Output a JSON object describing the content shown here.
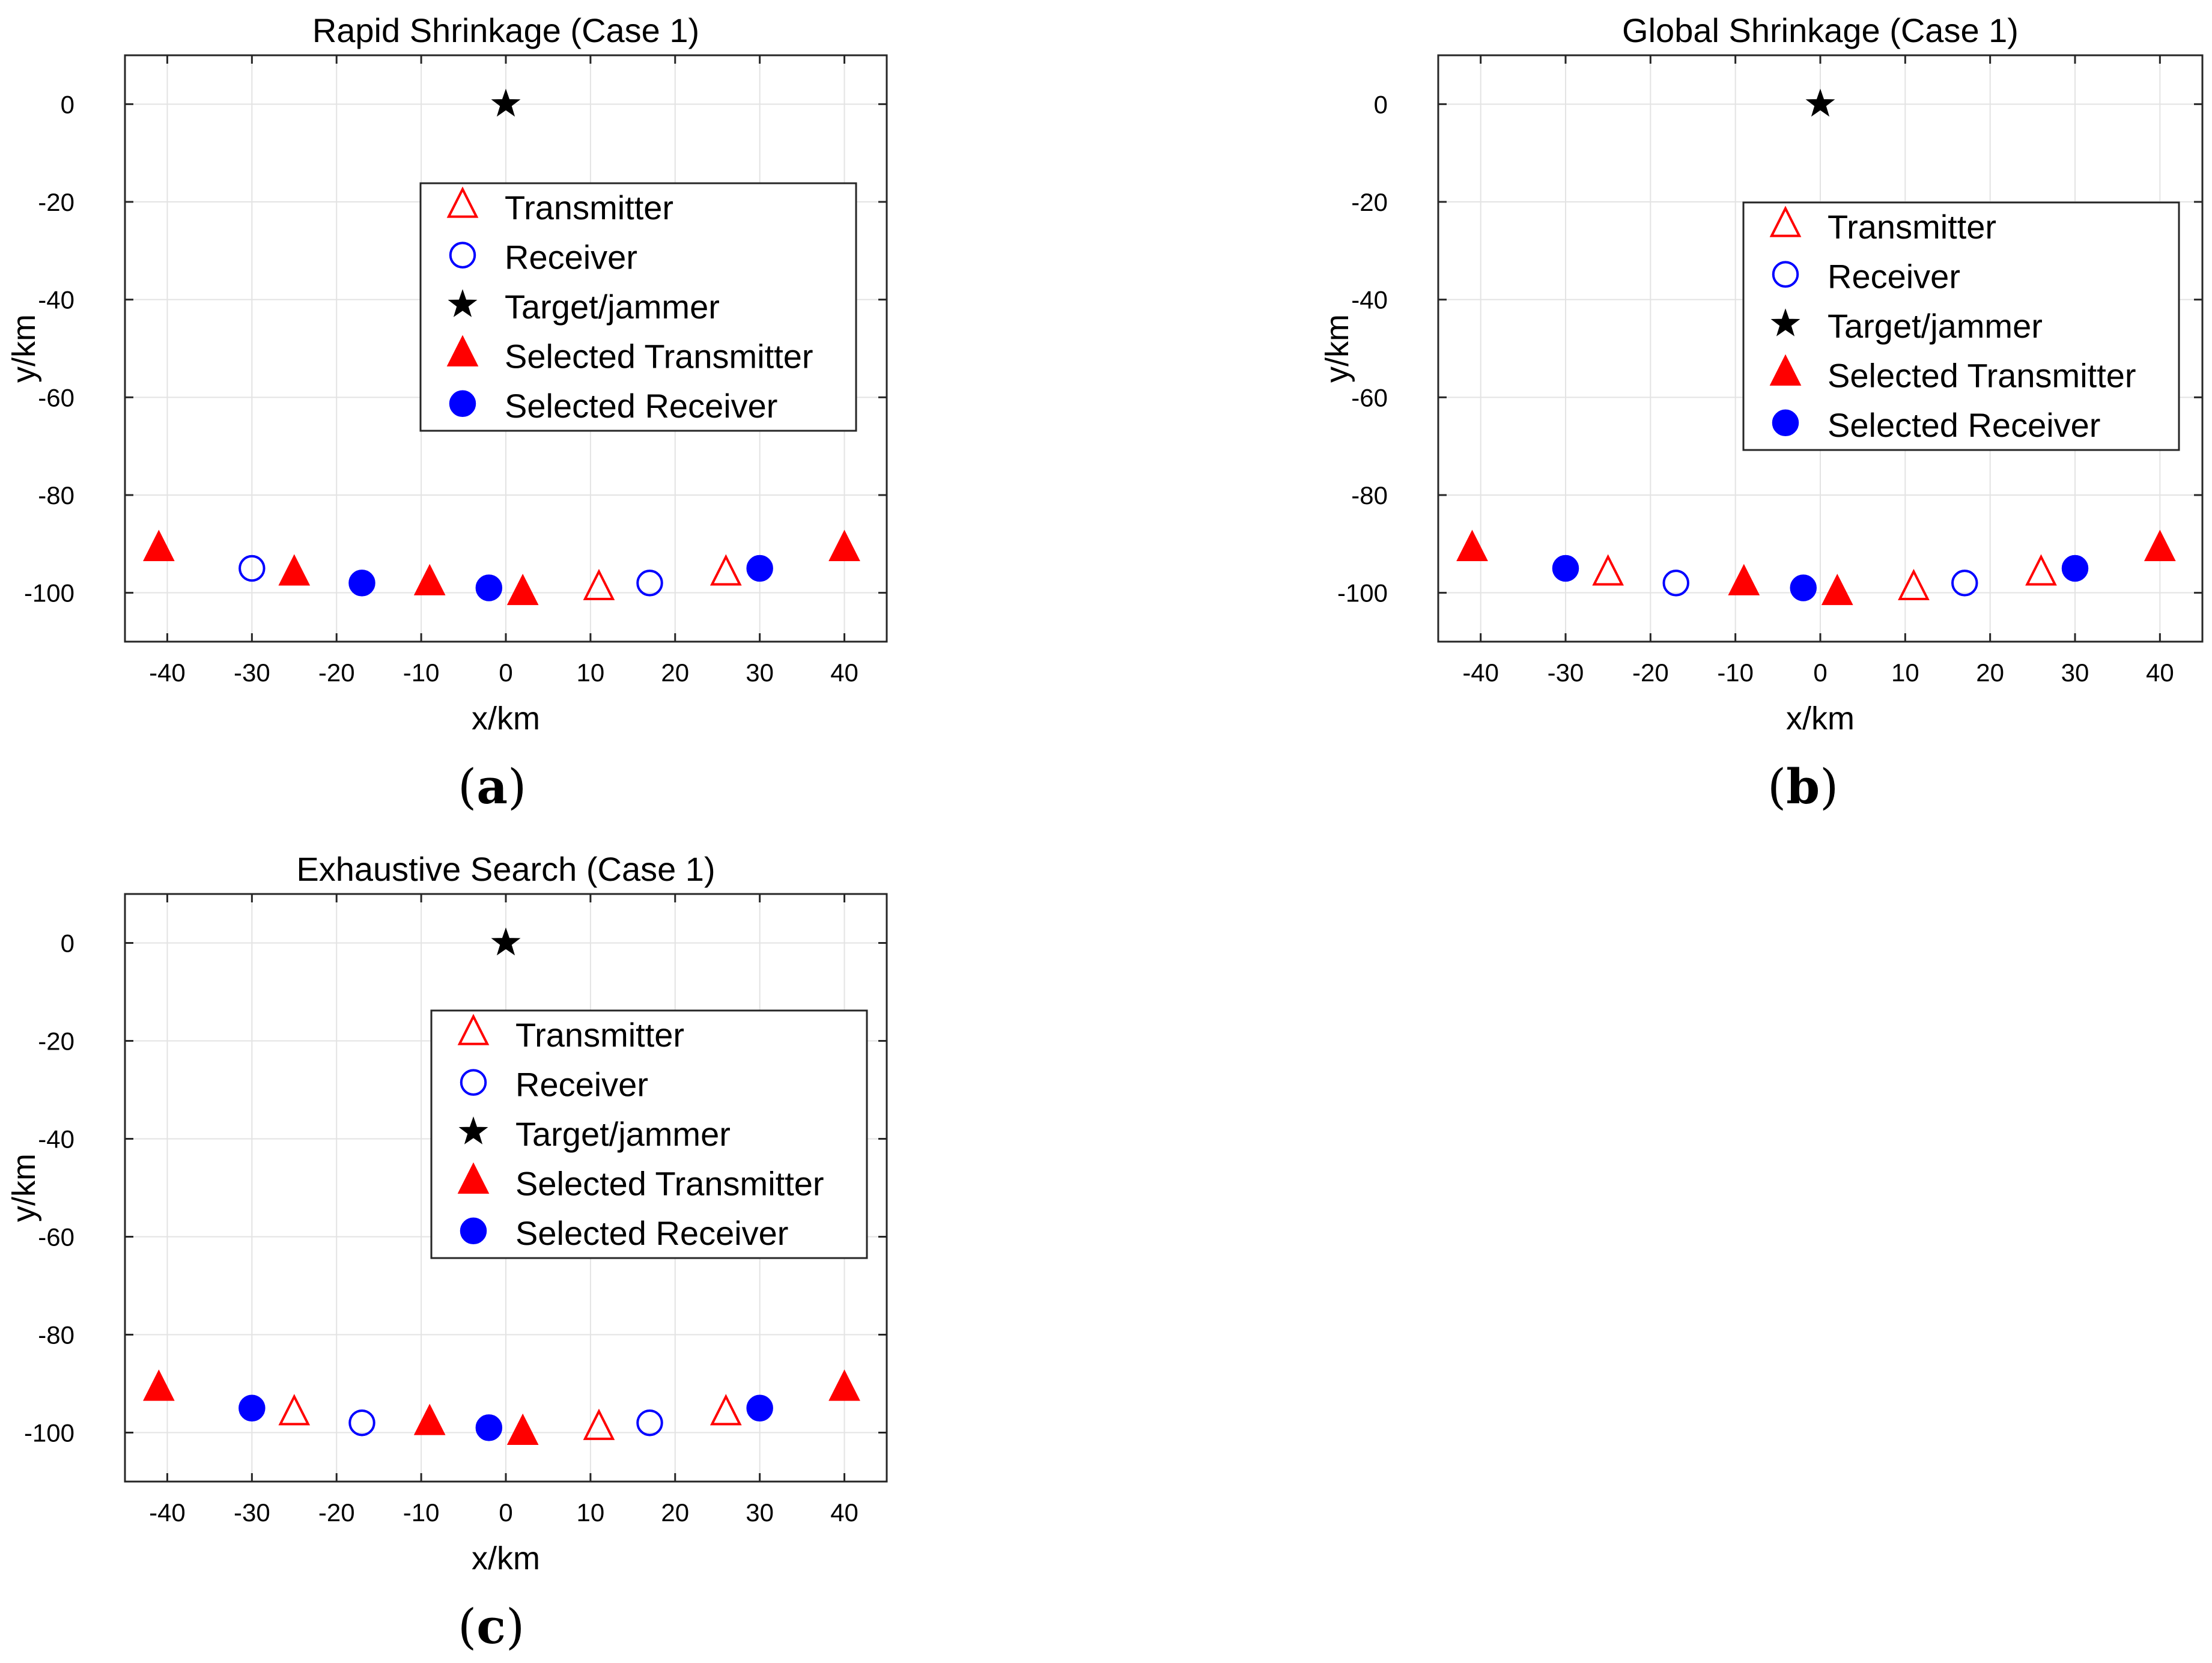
{
  "figure": {
    "labels": {
      "a": "a",
      "b": "b",
      "c": "c"
    }
  },
  "colors": {
    "transmitter": "#ff0000",
    "receiver": "#0000ff",
    "target": "#000000",
    "grid": "#e3e3e3",
    "axis": "#262626"
  },
  "legend_entries": [
    {
      "key": "transmitter",
      "label": "Transmitter",
      "marker": "triangle-open"
    },
    {
      "key": "receiver",
      "label": "Receiver",
      "marker": "circle-open"
    },
    {
      "key": "target",
      "label": "Target/jammer",
      "marker": "star"
    },
    {
      "key": "sel_transmitter",
      "label": "Selected Transmitter",
      "marker": "triangle-filled"
    },
    {
      "key": "sel_receiver",
      "label": "Selected Receiver",
      "marker": "circle-filled"
    }
  ],
  "chart_data": [
    {
      "type": "scatter",
      "panel": "a",
      "title": "Rapid Shrinkage (Case 1)",
      "xlabel": "x/km",
      "ylabel": "y/km",
      "xlim": [
        -45,
        45
      ],
      "ylim": [
        -110,
        10
      ],
      "xticks": [
        -40,
        -30,
        -20,
        -10,
        0,
        10,
        20,
        30,
        40
      ],
      "yticks": [
        0,
        -20,
        -40,
        -60,
        -80,
        -100
      ],
      "grid": true,
      "legend_position": "upper-right",
      "series": [
        {
          "name": "Transmitter",
          "marker": "triangle-open",
          "points": [
            [
              11,
              -99
            ],
            [
              26,
              -96
            ]
          ]
        },
        {
          "name": "Receiver",
          "marker": "circle-open",
          "points": [
            [
              -30,
              -95
            ],
            [
              17,
              -98
            ]
          ]
        },
        {
          "name": "Target/jammer",
          "marker": "star",
          "points": [
            [
              0,
              0
            ]
          ]
        },
        {
          "name": "Selected Transmitter",
          "marker": "triangle-filled",
          "points": [
            [
              -41,
              -91
            ],
            [
              -25,
              -96
            ],
            [
              -9,
              -98
            ],
            [
              2,
              -100
            ],
            [
              40,
              -91
            ]
          ]
        },
        {
          "name": "Selected Receiver",
          "marker": "circle-filled",
          "points": [
            [
              -17,
              -98
            ],
            [
              -2,
              -99
            ],
            [
              30,
              -95
            ]
          ]
        }
      ]
    },
    {
      "type": "scatter",
      "panel": "b",
      "title": "Global Shrinkage (Case 1)",
      "xlabel": "x/km",
      "ylabel": "y/km",
      "xlim": [
        -45,
        45
      ],
      "ylim": [
        -110,
        10
      ],
      "xticks": [
        -40,
        -30,
        -20,
        -10,
        0,
        10,
        20,
        30,
        40
      ],
      "yticks": [
        0,
        -20,
        -40,
        -60,
        -80,
        -100
      ],
      "grid": true,
      "legend_position": "right",
      "series": [
        {
          "name": "Transmitter",
          "marker": "triangle-open",
          "points": [
            [
              -25,
              -96
            ],
            [
              11,
              -99
            ],
            [
              26,
              -96
            ]
          ]
        },
        {
          "name": "Receiver",
          "marker": "circle-open",
          "points": [
            [
              -17,
              -98
            ],
            [
              17,
              -98
            ]
          ]
        },
        {
          "name": "Target/jammer",
          "marker": "star",
          "points": [
            [
              0,
              0
            ]
          ]
        },
        {
          "name": "Selected Transmitter",
          "marker": "triangle-filled",
          "points": [
            [
              -41,
              -91
            ],
            [
              -9,
              -98
            ],
            [
              2,
              -100
            ],
            [
              40,
              -91
            ]
          ]
        },
        {
          "name": "Selected Receiver",
          "marker": "circle-filled",
          "points": [
            [
              -30,
              -95
            ],
            [
              -2,
              -99
            ],
            [
              30,
              -95
            ]
          ]
        }
      ]
    },
    {
      "type": "scatter",
      "panel": "c",
      "title": "Exhaustive Search (Case 1)",
      "xlabel": "x/km",
      "ylabel": "y/km",
      "xlim": [
        -45,
        45
      ],
      "ylim": [
        -110,
        10
      ],
      "xticks": [
        -40,
        -30,
        -20,
        -10,
        0,
        10,
        20,
        30,
        40
      ],
      "yticks": [
        0,
        -20,
        -40,
        -60,
        -80,
        -100
      ],
      "grid": true,
      "legend_position": "upper-right",
      "series": [
        {
          "name": "Transmitter",
          "marker": "triangle-open",
          "points": [
            [
              -25,
              -96
            ],
            [
              11,
              -99
            ],
            [
              26,
              -96
            ]
          ]
        },
        {
          "name": "Receiver",
          "marker": "circle-open",
          "points": [
            [
              -17,
              -98
            ],
            [
              17,
              -98
            ]
          ]
        },
        {
          "name": "Target/jammer",
          "marker": "star",
          "points": [
            [
              0,
              0
            ]
          ]
        },
        {
          "name": "Selected Transmitter",
          "marker": "triangle-filled",
          "points": [
            [
              -41,
              -91
            ],
            [
              -9,
              -98
            ],
            [
              2,
              -100
            ],
            [
              40,
              -91
            ]
          ]
        },
        {
          "name": "Selected Receiver",
          "marker": "circle-filled",
          "points": [
            [
              -30,
              -95
            ],
            [
              -2,
              -99
            ],
            [
              30,
              -95
            ]
          ]
        }
      ]
    }
  ]
}
